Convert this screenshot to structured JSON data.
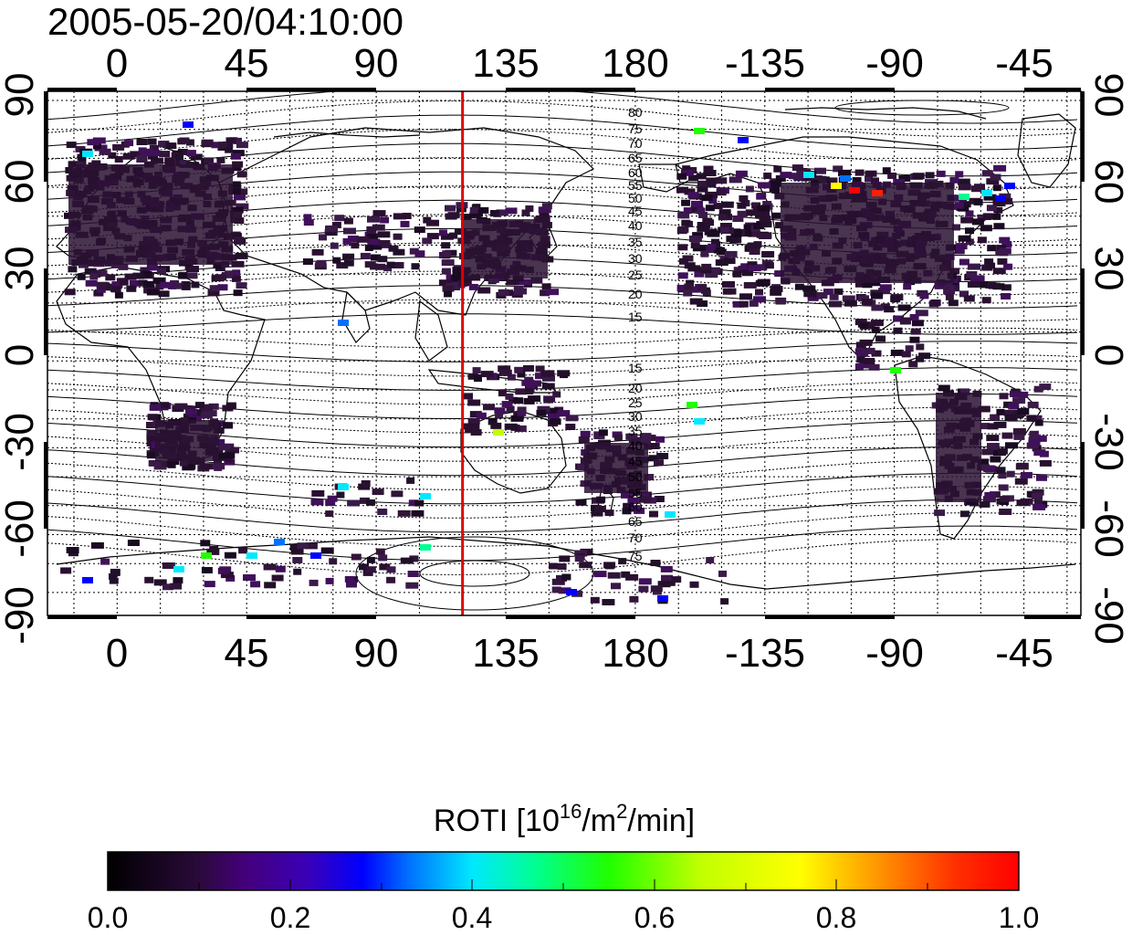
{
  "title": "2005-05-20/04:10:00",
  "top_lon_labels": [
    "0",
    "45",
    "90",
    "135",
    "180",
    "-135",
    "-90",
    "-45"
  ],
  "bottom_lon_labels": [
    "0",
    "45",
    "90",
    "135",
    "180",
    "-135",
    "-90",
    "-45"
  ],
  "left_lat_labels": [
    "90",
    "60",
    "30",
    "0",
    "-30",
    "-60",
    "-90"
  ],
  "right_lat_labels": [
    "90",
    "60",
    "30",
    "0",
    "-30",
    "-60",
    "-90"
  ],
  "contour_labels_north": [
    "80",
    "75",
    "70",
    "65",
    "60",
    "55",
    "50",
    "45",
    "40",
    "35",
    "30",
    "25",
    "20",
    "15"
  ],
  "contour_labels_south": [
    "15",
    "20",
    "25",
    "30",
    "35",
    "40",
    "45",
    "50",
    "55",
    "60",
    "65",
    "70",
    "75"
  ],
  "meridian_marker": {
    "longitude": 120,
    "color": "#e00000"
  },
  "colorbar": {
    "label_prefix": "ROTI  [10",
    "label_sup1": "16",
    "label_mid": "/m",
    "label_sup2": "2",
    "label_suffix": "/min]",
    "ticks": [
      "0.0",
      "0.2",
      "0.4",
      "0.6",
      "0.8",
      "1.0"
    ],
    "range": [
      0.0,
      1.0
    ],
    "colors": [
      "#000000",
      "#2a0a3a",
      "#44007a",
      "#3a00b8",
      "#0000ff",
      "#0070ff",
      "#00e8ff",
      "#00ff90",
      "#20ff00",
      "#c0ff00",
      "#ffff00",
      "#ff9000",
      "#ff3000",
      "#ff0000"
    ]
  }
}
